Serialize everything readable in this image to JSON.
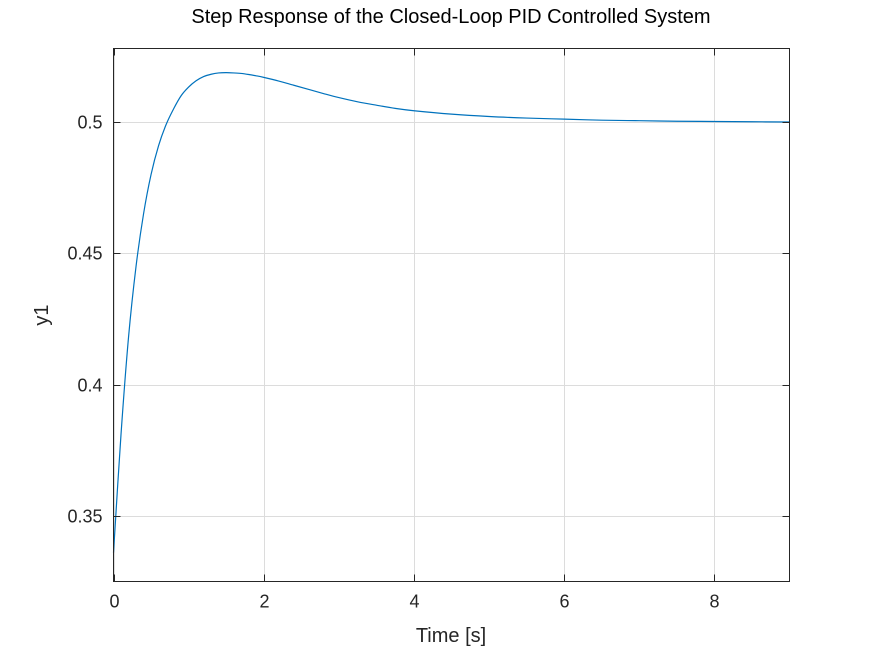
{
  "chart_data": {
    "type": "line",
    "title": "Step Response of the Closed-Loop PID Controlled System",
    "xlabel": "Time [s]",
    "ylabel": "y1",
    "xlim": [
      0,
      9
    ],
    "ylim": [
      0.325,
      0.528
    ],
    "xticks": [
      0,
      2,
      4,
      6,
      8
    ],
    "xtick_labels": [
      "0",
      "2",
      "4",
      "6",
      "8"
    ],
    "yticks": [
      0.35,
      0.4,
      0.45,
      0.5
    ],
    "ytick_labels": [
      "0.35",
      "0.4",
      "0.45",
      "0.5"
    ],
    "grid": true,
    "legend": false,
    "line_color": "#0072bd",
    "series": [
      {
        "x": [
          0,
          0.1,
          0.2,
          0.3,
          0.4,
          0.5,
          0.6,
          0.7,
          0.8,
          0.9,
          1.0,
          1.1,
          1.2,
          1.3,
          1.4,
          1.5,
          1.6,
          1.7,
          1.8,
          1.9,
          2.0,
          2.2,
          2.4,
          2.6,
          2.8,
          3.0,
          3.25,
          3.5,
          3.75,
          4.0,
          4.5,
          5.0,
          5.5,
          6.0,
          6.5,
          7.0,
          7.5,
          8.0,
          8.5,
          9.0
        ],
        "values": [
          0.336,
          0.381,
          0.418,
          0.445,
          0.465,
          0.48,
          0.491,
          0.499,
          0.505,
          0.51,
          0.5133,
          0.5157,
          0.5173,
          0.5182,
          0.5187,
          0.5188,
          0.5187,
          0.5185,
          0.5181,
          0.5176,
          0.517,
          0.5156,
          0.514,
          0.5124,
          0.5108,
          0.5093,
          0.5077,
          0.5064,
          0.5052,
          0.5043,
          0.503,
          0.5021,
          0.5015,
          0.5011,
          0.5007,
          0.5005,
          0.5003,
          0.5002,
          0.5001,
          0.5
        ]
      }
    ]
  }
}
